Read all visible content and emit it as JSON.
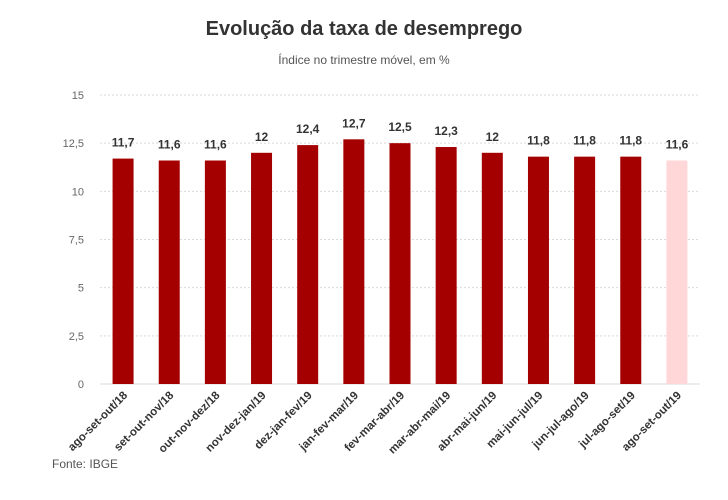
{
  "chart_data": {
    "type": "bar",
    "title": "Evolução da taxa de desemprego",
    "subtitle": "Índice no trimestre móvel, em %",
    "xlabel": "",
    "ylabel": "",
    "ylim": [
      0,
      15
    ],
    "yticks": [
      "0",
      "2,5",
      "5",
      "7,5",
      "10",
      "12,5",
      "15"
    ],
    "grid": true,
    "categories": [
      "ago-set-out/18",
      "set-out-nov/18",
      "out-nov-dez/18",
      "nov-dez-jan/19",
      "dez-jan-fev/19",
      "jan-fev-mar/19",
      "fev-mar-abr/19",
      "mar-abr-mai/19",
      "abr-mai-jun/19",
      "mai-jun-jul/19",
      "jun-jul-ago/19",
      "jul-ago-set/19",
      "ago-set-out/19"
    ],
    "values": [
      11.7,
      11.6,
      11.6,
      12,
      12.4,
      12.7,
      12.5,
      12.3,
      12,
      11.8,
      11.8,
      11.8,
      11.6
    ],
    "value_labels": [
      "11,7",
      "11,6",
      "11,6",
      "12",
      "12,4",
      "12,7",
      "12,5",
      "12,3",
      "12",
      "11,8",
      "11,8",
      "11,8",
      "11,6"
    ],
    "colors": {
      "bar": "#a50000",
      "highlight_bar": "#ffd7d9",
      "grid": "#d9d9d9"
    },
    "highlight_index": 12
  },
  "footer": {
    "source": "Fonte: IBGE"
  }
}
